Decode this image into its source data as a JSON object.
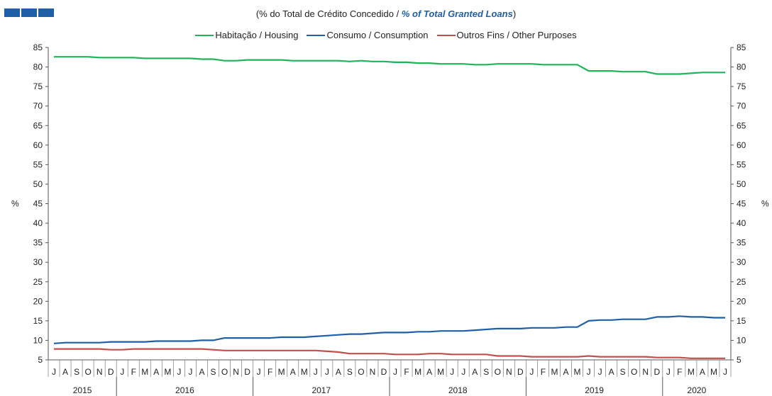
{
  "subtitle": {
    "part1": "(% do Total de Crédito Concedido  / ",
    "part2": "% of  Total Granted Loans",
    "part3": ")"
  },
  "colors": {
    "housing": "#21b35a",
    "consumption": "#1f5fa8",
    "other": "#c0504d",
    "brand": "#1f5fa8"
  },
  "chart_data": {
    "type": "line",
    "ylabel": "%",
    "ylabel_right": "%",
    "ylim": [
      5,
      85
    ],
    "yticks": [
      5,
      10,
      15,
      20,
      25,
      30,
      35,
      40,
      45,
      50,
      55,
      60,
      65,
      70,
      75,
      80,
      85
    ],
    "grid": false,
    "legend_position": "top",
    "month_labels": [
      "J",
      "A",
      "S",
      "O",
      "N",
      "D",
      "J",
      "F",
      "M",
      "A",
      "M",
      "J",
      "J",
      "A",
      "S",
      "O",
      "N",
      "D",
      "J",
      "F",
      "M",
      "A",
      "M",
      "J",
      "J",
      "A",
      "S",
      "O",
      "N",
      "D",
      "J",
      "F",
      "M",
      "A",
      "M",
      "J",
      "J",
      "A",
      "S",
      "O",
      "N",
      "D",
      "J",
      "F",
      "M",
      "A",
      "M",
      "J",
      "J",
      "A",
      "S",
      "O",
      "N",
      "D",
      "J",
      "F",
      "M",
      "A",
      "M",
      "J"
    ],
    "years": [
      {
        "label": "2015",
        "start": 0,
        "count": 6
      },
      {
        "label": "2016",
        "start": 6,
        "count": 12
      },
      {
        "label": "2017",
        "start": 18,
        "count": 12
      },
      {
        "label": "2018",
        "start": 30,
        "count": 12
      },
      {
        "label": "2019",
        "start": 42,
        "count": 12
      },
      {
        "label": "2020",
        "start": 54,
        "count": 6
      }
    ],
    "series": [
      {
        "name": "Habitação / Housing",
        "key": "housing",
        "values": [
          82.6,
          82.6,
          82.6,
          82.6,
          82.4,
          82.4,
          82.4,
          82.4,
          82.2,
          82.2,
          82.2,
          82.2,
          82.2,
          82.0,
          82.0,
          81.6,
          81.6,
          81.8,
          81.8,
          81.8,
          81.8,
          81.6,
          81.6,
          81.6,
          81.6,
          81.6,
          81.4,
          81.6,
          81.4,
          81.4,
          81.2,
          81.2,
          81.0,
          81.0,
          80.8,
          80.8,
          80.8,
          80.6,
          80.6,
          80.8,
          80.8,
          80.8,
          80.8,
          80.6,
          80.6,
          80.6,
          80.6,
          79.0,
          79.0,
          79.0,
          78.8,
          78.8,
          78.8,
          78.2,
          78.2,
          78.2,
          78.4,
          78.6,
          78.6,
          78.6
        ]
      },
      {
        "name": "Consumo / Consumption",
        "key": "consumption",
        "values": [
          9.2,
          9.4,
          9.4,
          9.4,
          9.4,
          9.6,
          9.6,
          9.6,
          9.6,
          9.8,
          9.8,
          9.8,
          9.8,
          10.0,
          10.0,
          10.6,
          10.6,
          10.6,
          10.6,
          10.6,
          10.8,
          10.8,
          10.8,
          11.0,
          11.2,
          11.4,
          11.6,
          11.6,
          11.8,
          12.0,
          12.0,
          12.0,
          12.2,
          12.2,
          12.4,
          12.4,
          12.4,
          12.6,
          12.8,
          13.0,
          13.0,
          13.0,
          13.2,
          13.2,
          13.2,
          13.4,
          13.4,
          15.0,
          15.2,
          15.2,
          15.4,
          15.4,
          15.4,
          16.0,
          16.0,
          16.2,
          16.0,
          16.0,
          15.8,
          15.8
        ]
      },
      {
        "name": "Outros Fins / Other Purposes",
        "key": "other",
        "values": [
          7.8,
          7.8,
          7.8,
          7.8,
          7.8,
          7.6,
          7.6,
          7.8,
          7.8,
          7.8,
          7.8,
          7.8,
          7.8,
          7.8,
          7.6,
          7.4,
          7.4,
          7.4,
          7.4,
          7.4,
          7.4,
          7.4,
          7.4,
          7.4,
          7.2,
          7.0,
          6.6,
          6.6,
          6.6,
          6.6,
          6.4,
          6.4,
          6.4,
          6.6,
          6.6,
          6.4,
          6.4,
          6.4,
          6.4,
          6.0,
          6.0,
          6.0,
          5.8,
          5.8,
          5.8,
          5.8,
          5.8,
          6.0,
          5.8,
          5.8,
          5.8,
          5.8,
          5.8,
          5.6,
          5.6,
          5.6,
          5.4,
          5.4,
          5.4,
          5.4
        ]
      }
    ]
  }
}
